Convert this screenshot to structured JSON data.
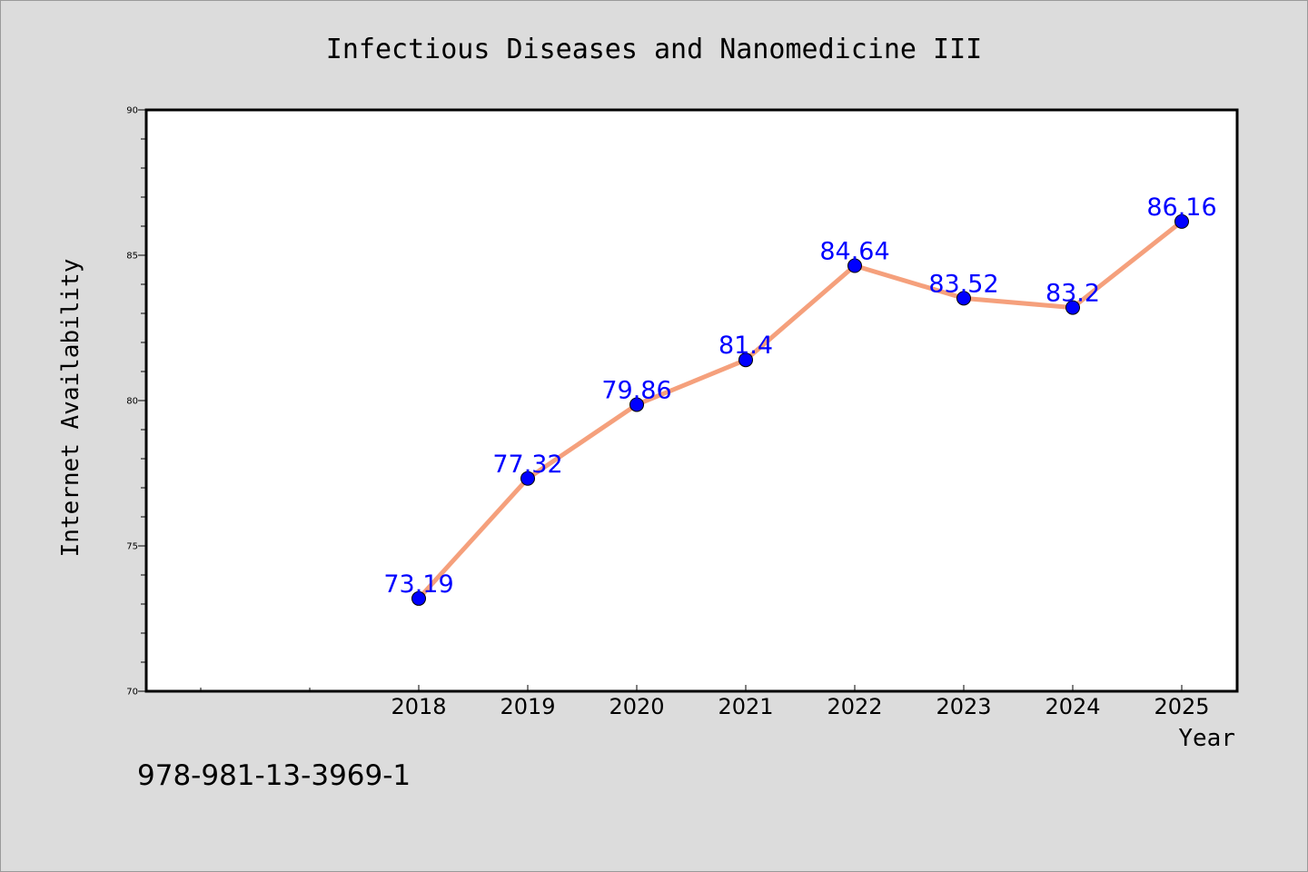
{
  "chart_data": {
    "type": "line",
    "title": "Infectious Diseases and Nanomedicine III",
    "xlabel": "Year",
    "ylabel": "Internet Availability",
    "categories": [
      "2018",
      "2019",
      "2020",
      "2021",
      "2022",
      "2023",
      "2024",
      "2025"
    ],
    "values": [
      73.19,
      77.32,
      79.86,
      81.4,
      84.64,
      83.52,
      83.2,
      86.16
    ],
    "data_labels": [
      "73.19",
      "77.32",
      "79.86",
      "81.4",
      "84.64",
      "83.52",
      "83.2",
      "86.16"
    ],
    "ylim": [
      70,
      90
    ],
    "yticks": [
      "70",
      "75",
      "80",
      "85",
      "90"
    ],
    "grid": false,
    "legend": "none",
    "line_color": "#f5a07c",
    "marker_color": "#0000ff",
    "label_color": "#0000ff",
    "plot_background": "#ffffff",
    "figure_background": "#dcdcdc"
  },
  "footer": {
    "isbn": "978-981-13-3969-1"
  }
}
